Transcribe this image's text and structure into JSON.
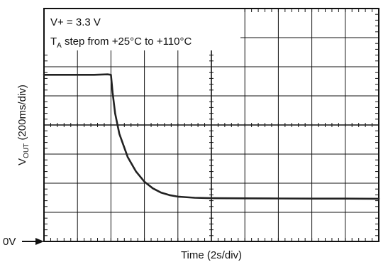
{
  "chart_data": {
    "type": "line",
    "annotations": {
      "supply": "V+ = 3.3 V",
      "step_prefix": "T",
      "step_sub": "A",
      "step_text": " step from +25°C to +110°C"
    },
    "xlabel": "Time (2s/div)",
    "ylabel": {
      "main": "V",
      "sub": "OUT",
      "rest": " (200ms/div)"
    },
    "zero_marker": "0V",
    "grid": true,
    "x_divisions": 10,
    "y_divisions": 8,
    "xlim": [
      0,
      20
    ],
    "ylim": [
      0,
      1600
    ],
    "x_unit": "s",
    "y_unit": "ms",
    "series": [
      {
        "x": [
          0,
          1,
          2,
          3,
          3.8,
          4.0,
          4.1,
          4.25,
          4.5,
          5.0,
          5.5,
          6.0,
          6.5,
          7.0,
          7.5,
          8.0,
          9.0,
          10.0,
          12.0,
          14.0,
          16.0,
          18.0,
          20.0
        ],
        "y": [
          1145,
          1145,
          1145,
          1145,
          1148,
          1145,
          1020,
          880,
          740,
          580,
          480,
          410,
          365,
          335,
          318,
          308,
          300,
          297,
          296,
          295,
          294,
          294,
          293
        ]
      }
    ]
  }
}
